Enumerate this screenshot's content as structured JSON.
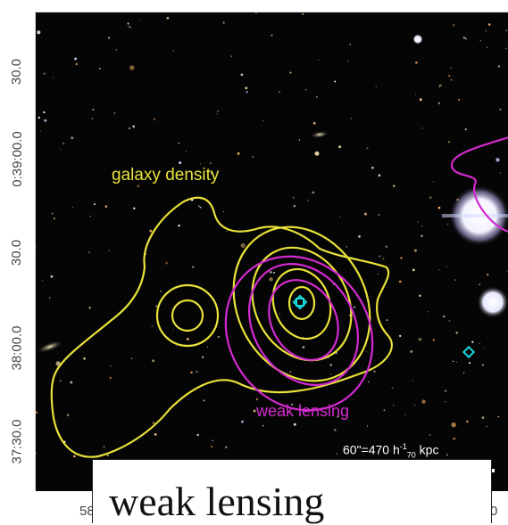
{
  "image": {
    "labels": {
      "galaxy_density": "galaxy density",
      "weak_lensing": "weak lensing",
      "scale_bar_text": "60\"=470 h"
    },
    "colors": {
      "sky": "#050505",
      "galaxy_density_contour": "#e8e23a",
      "weak_lensing_contour": "#d42ad0",
      "marker": "#19d8dc",
      "scale_bar": "#ffffff"
    },
    "y_axis_ticks": [
      "30.0",
      "0:39:00.0",
      "30.0",
      "38:00.0",
      "37:30.0"
    ],
    "x_axis_ticks": [
      "58",
      "0"
    ],
    "caption": "weak lensing"
  }
}
